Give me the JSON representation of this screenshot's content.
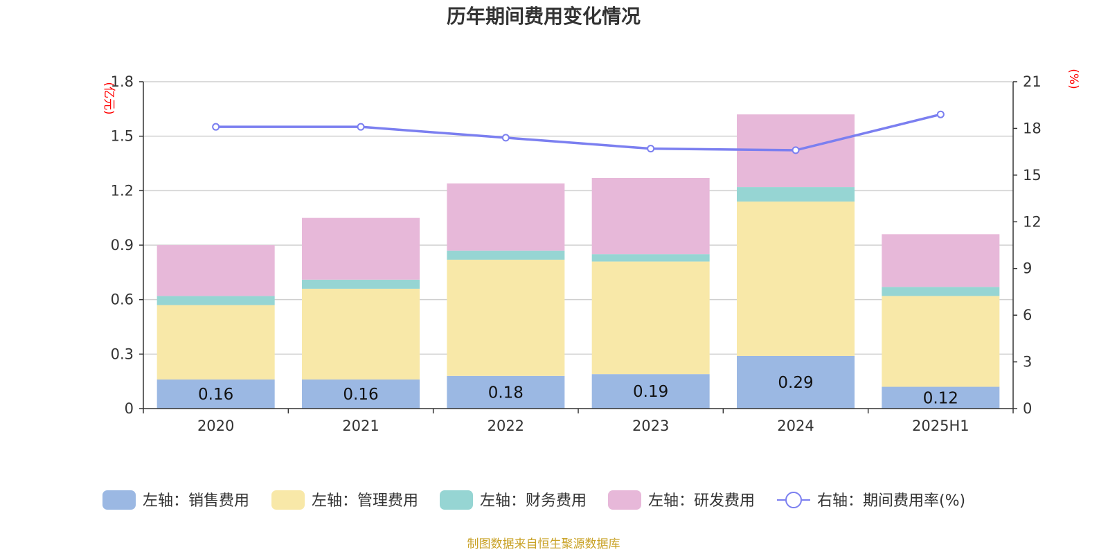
{
  "chart_data": {
    "type": "bar",
    "stacked": true,
    "title": "历年期间费用变化情况",
    "categories": [
      "2020",
      "2021",
      "2022",
      "2023",
      "2024",
      "2025H1"
    ],
    "y_left": {
      "unit_label": "(亿元)",
      "ylim": [
        0,
        1.8
      ],
      "ticks": [
        "0",
        "0.3",
        "0.6",
        "0.9",
        "1.2",
        "1.5",
        "1.8"
      ]
    },
    "y_right": {
      "unit_label": "(%)",
      "ylim": [
        0,
        21
      ],
      "ticks": [
        "0",
        "3",
        "6",
        "9",
        "12",
        "15",
        "18",
        "21"
      ]
    },
    "grid": true,
    "legend_position": "bottom",
    "series": [
      {
        "name": "左轴：销售费用",
        "axis": "left",
        "color": "#9bb8e3",
        "values": [
          0.16,
          0.16,
          0.18,
          0.19,
          0.29,
          0.12
        ],
        "labels": [
          "0.16",
          "0.16",
          "0.18",
          "0.19",
          "0.29",
          "0.12"
        ]
      },
      {
        "name": "左轴：管理费用",
        "axis": "left",
        "color": "#f8e8a8",
        "values": [
          0.41,
          0.5,
          0.64,
          0.62,
          0.85,
          0.5
        ]
      },
      {
        "name": "左轴：财务费用",
        "axis": "left",
        "color": "#96d5d3",
        "values": [
          0.05,
          0.05,
          0.05,
          0.04,
          0.08,
          0.05
        ]
      },
      {
        "name": "左轴：研发费用",
        "axis": "left",
        "color": "#e7b8d9",
        "values": [
          0.28,
          0.34,
          0.37,
          0.42,
          0.4,
          0.29
        ]
      },
      {
        "name": "右轴：期间费用率(%)",
        "axis": "right",
        "type": "line",
        "color": "#7b7ff0",
        "values": [
          18.1,
          18.1,
          17.4,
          16.7,
          16.6,
          18.9
        ]
      }
    ],
    "source": "制图数据来自恒生聚源数据库"
  }
}
